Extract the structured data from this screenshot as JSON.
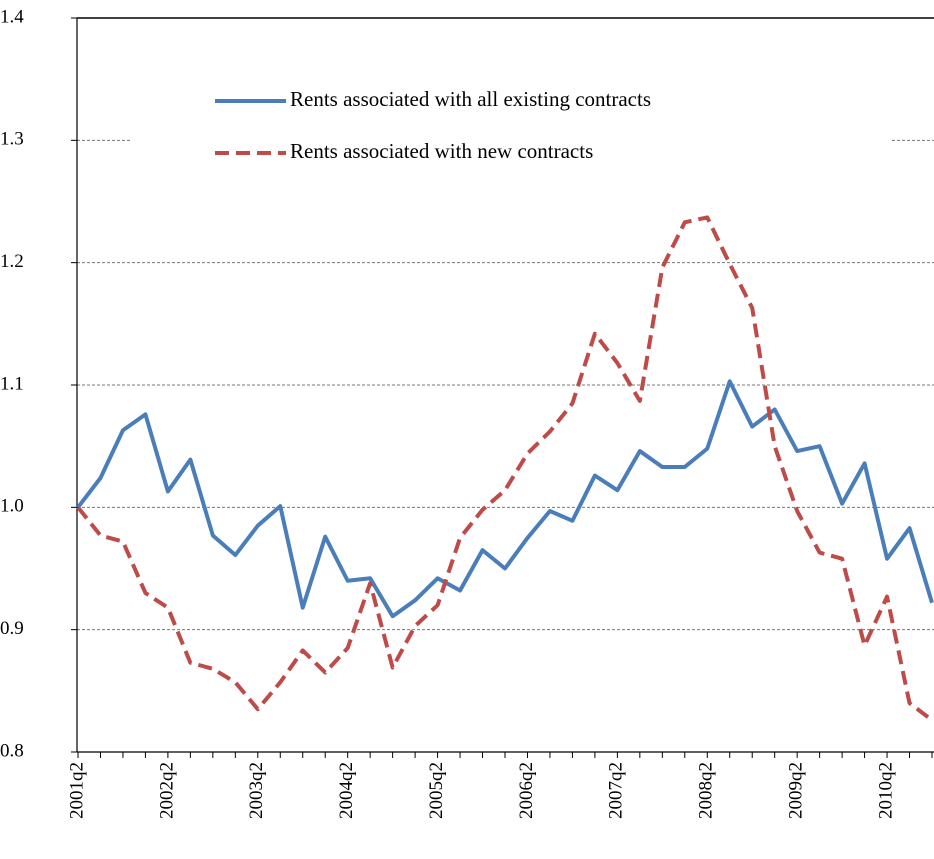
{
  "chart_data": {
    "type": "line",
    "categories": [
      "2001q2",
      null,
      null,
      null,
      "2002q2",
      null,
      null,
      null,
      "2003q2",
      null,
      null,
      null,
      "2004q2",
      null,
      null,
      null,
      "2005q2",
      null,
      null,
      null,
      "2006q2",
      null,
      null,
      null,
      "2007q2",
      null,
      null,
      null,
      "2008q2",
      null,
      null,
      null,
      "2009q2",
      null,
      null,
      null,
      "2010q2",
      null,
      null
    ],
    "series": [
      {
        "name": "Rents associated with all existing contracts",
        "color": "#4a7ebb",
        "dash": "solid",
        "values": [
          1.0,
          1.024,
          1.063,
          1.076,
          1.013,
          1.039,
          0.977,
          0.961,
          0.985,
          1.001,
          0.918,
          0.976,
          0.94,
          0.942,
          0.911,
          0.924,
          0.942,
          0.932,
          0.965,
          0.95,
          0.975,
          0.997,
          0.989,
          1.026,
          1.014,
          1.046,
          1.033,
          1.033,
          1.048,
          1.103,
          1.066,
          1.08,
          1.046,
          1.05,
          1.003,
          1.036,
          0.958,
          0.983,
          0.922
        ]
      },
      {
        "name": "Rents associated with new contracts",
        "color": "#be4b48",
        "dash": "dashed",
        "values": [
          1.0,
          0.977,
          0.972,
          0.93,
          0.918,
          0.873,
          0.868,
          0.857,
          0.835,
          0.857,
          0.883,
          0.865,
          0.885,
          0.938,
          0.869,
          0.903,
          0.92,
          0.975,
          0.998,
          1.014,
          1.044,
          1.062,
          1.085,
          1.142,
          1.118,
          1.087,
          1.196,
          1.233,
          1.237,
          1.199,
          1.163,
          1.05,
          0.997,
          0.963,
          0.958,
          0.887,
          0.927,
          0.84,
          0.826
        ]
      }
    ],
    "ylim": [
      0.8,
      1.4
    ],
    "yticks": [
      {
        "value": 0.8,
        "label": "0.8"
      },
      {
        "value": 0.9,
        "label": "0.9"
      },
      {
        "value": 1.0,
        "label": "1.0"
      },
      {
        "value": 1.1,
        "label": "1.1"
      },
      {
        "value": 1.2,
        "label": "1.2"
      },
      {
        "value": 1.3,
        "label": "1.3"
      },
      {
        "value": 1.4,
        "label": "1.4"
      }
    ],
    "grid": true,
    "legend": "top"
  }
}
